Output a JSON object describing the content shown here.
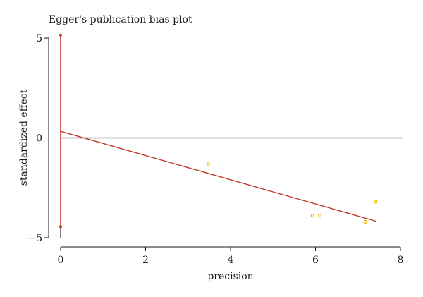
{
  "chart_data": {
    "type": "scatter",
    "title": "Egger's publication bias plot",
    "xlabel": "precision",
    "ylabel": "standardized effect",
    "xlim": [
      -0.25,
      8.1
    ],
    "ylim": [
      -5.4,
      5.9
    ],
    "x_ticks": [
      0,
      2,
      4,
      6,
      8
    ],
    "y_ticks": [
      5,
      0,
      -5
    ],
    "grid": false,
    "points": [
      {
        "x": 3.47,
        "y": -1.3
      },
      {
        "x": 5.93,
        "y": -3.9
      },
      {
        "x": 6.1,
        "y": -3.9
      },
      {
        "x": 7.17,
        "y": -4.2
      },
      {
        "x": 7.42,
        "y": -3.2
      }
    ],
    "reference_line_y": 0,
    "reference_line_x_range": [
      0,
      8.05
    ],
    "regression_line": {
      "x": [
        0,
        7.42
      ],
      "y": [
        0.33,
        -4.17
      ]
    },
    "intercept_ci": {
      "x": 0,
      "y_low": -4.45,
      "y_high": 5.15
    },
    "colors": {
      "points": "#e6b800",
      "regression": "#c0392b",
      "ci": "#c0392b",
      "reference": "#1a1a1a",
      "axis": "#1a1a1a"
    }
  }
}
